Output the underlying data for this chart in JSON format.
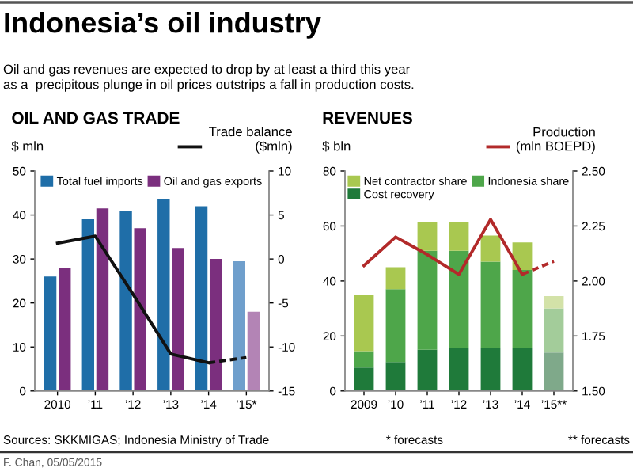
{
  "chart_data": [
    {
      "type": "bar",
      "title": "OIL AND GAS TRADE",
      "ylabel": "$ mln",
      "y2label": "Trade balance\n($mln)",
      "annotations": [
        "Indonesia’s oil industry",
        "Oil and gas revenues are expected to drop by at least a third this year\nas a  precipitous plunge in oil prices outstrips a fall in production costs.",
        "Sources: SKKMIGAS; Indonesia Ministry of Trade",
        "F. Chan, 05/05/2015",
        "* forecasts"
      ],
      "categories": [
        "2010",
        "’11",
        "’12",
        "’13",
        "’14",
        "’15*"
      ],
      "series": [
        {
          "name": "Total fuel imports",
          "color": "#1f6ea8",
          "colors": [
            "#1f6ea8",
            "#1f6ea8",
            "#1f6ea8",
            "#1f6ea8",
            "#1f6ea8",
            "#6f9fcc"
          ],
          "values": [
            26,
            39,
            41,
            43.5,
            42,
            29.5
          ]
        },
        {
          "name": "Oil and gas exports",
          "color": "#7b2f7e",
          "colors": [
            "#7b2f7e",
            "#7b2f7e",
            "#7b2f7e",
            "#7b2f7e",
            "#7b2f7e",
            "#b384b5"
          ],
          "values": [
            28,
            41.5,
            37,
            32.5,
            30,
            18
          ]
        },
        {
          "type": "line",
          "axis": "y2",
          "color": "#111111",
          "line_style": "solid",
          "values": [
            1.8,
            2.6,
            -4,
            -10.8,
            -11.8,
            null
          ]
        },
        {
          "type": "line",
          "axis": "y2",
          "color": "#111111",
          "line_style": "dashed",
          "values": [
            null,
            null,
            null,
            null,
            -11.8,
            -11.2
          ]
        }
      ],
      "ylim": [
        0,
        50
      ],
      "yticks": [
        0,
        10,
        20,
        30,
        40,
        50
      ],
      "y2lim": [
        -15,
        10
      ],
      "y2ticks": [
        -15,
        -10,
        -5,
        0,
        5,
        10
      ],
      "legend": "top",
      "grid": false
    },
    {
      "type": "bar",
      "stacked": true,
      "title": "REVENUES",
      "ylabel": "$ bln",
      "y2label": "Production\n(mln BOEPD)",
      "annotations": [
        "** forecasts"
      ],
      "categories": [
        "2009",
        "’10",
        "’11",
        "’12",
        "’13",
        "’14",
        "’15**"
      ],
      "series": [
        {
          "name": "Cost recovery",
          "color": "#1f7a3a",
          "colors": [
            "#1f7a3a",
            "#1f7a3a",
            "#1f7a3a",
            "#1f7a3a",
            "#1f7a3a",
            "#1f7a3a",
            "#7fa98a"
          ],
          "values": [
            8.5,
            10.5,
            15,
            15.5,
            15.5,
            15.5,
            14
          ]
        },
        {
          "name": "Indonesia share",
          "color": "#4ea64a",
          "colors": [
            "#4ea64a",
            "#4ea64a",
            "#4ea64a",
            "#4ea64a",
            "#4ea64a",
            "#4ea64a",
            "#a3cc9a"
          ],
          "values": [
            6,
            26.5,
            36,
            35.5,
            31.5,
            28.5,
            16
          ]
        },
        {
          "name": "Net contractor share",
          "color": "#a9c850",
          "colors": [
            "#a9c850",
            "#a9c850",
            "#a9c850",
            "#a9c850",
            "#a9c850",
            "#a9c850",
            "#d3e2a8"
          ],
          "values": [
            20.5,
            8,
            10.5,
            10.5,
            9.5,
            10,
            4.5
          ]
        },
        {
          "type": "line",
          "axis": "y2",
          "color": "#b22a2a",
          "line_style": "solid",
          "values": [
            2.07,
            2.2,
            2.12,
            2.03,
            2.28,
            2.03,
            null
          ]
        },
        {
          "type": "line",
          "axis": "y2",
          "color": "#b22a2a",
          "line_style": "dashed",
          "values": [
            null,
            null,
            null,
            null,
            null,
            2.03,
            2.09
          ]
        }
      ],
      "ylim": [
        0,
        80
      ],
      "yticks": [
        0,
        20,
        40,
        60,
        80
      ],
      "y2lim": [
        1.5,
        2.5
      ],
      "y2ticks": [
        {
          "value": 1.5,
          "label": "1.50"
        },
        1.75,
        {
          "value": 2.0,
          "label": "2.00"
        },
        2.25,
        {
          "value": 2.5,
          "label": "2.50"
        }
      ],
      "legend": "top",
      "grid": false
    }
  ]
}
